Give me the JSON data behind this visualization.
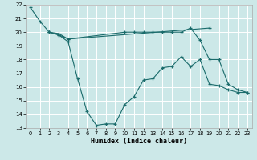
{
  "xlabel": "Humidex (Indice chaleur)",
  "xlim": [
    -0.5,
    23.5
  ],
  "ylim": [
    13,
    22
  ],
  "yticks": [
    13,
    14,
    15,
    16,
    17,
    18,
    19,
    20,
    21,
    22
  ],
  "xticks": [
    0,
    1,
    2,
    3,
    4,
    5,
    6,
    7,
    8,
    9,
    10,
    11,
    12,
    13,
    14,
    15,
    16,
    17,
    18,
    19,
    20,
    21,
    22,
    23
  ],
  "bg_color": "#cce8e8",
  "grid_color": "#ffffff",
  "line_color": "#1a6b6b",
  "line1_x": [
    0,
    1,
    2,
    3,
    4,
    19
  ],
  "line1_y": [
    21.8,
    20.8,
    20.0,
    19.9,
    19.5,
    20.3
  ],
  "line2_x": [
    2,
    3,
    4,
    5,
    6,
    7,
    8,
    9,
    10,
    11,
    12,
    13,
    14,
    15,
    16,
    17,
    18,
    19,
    20,
    21,
    22,
    23
  ],
  "line2_y": [
    20.0,
    19.8,
    19.3,
    16.6,
    14.2,
    13.2,
    13.3,
    13.3,
    14.7,
    15.3,
    16.5,
    16.6,
    17.4,
    17.5,
    18.2,
    17.5,
    18.0,
    16.2,
    16.1,
    15.8,
    15.6,
    15.6
  ],
  "line3_x": [
    2,
    3,
    4,
    10,
    11,
    12,
    13,
    14,
    15,
    16,
    17,
    18,
    19,
    20,
    21,
    22,
    23
  ],
  "line3_y": [
    20.0,
    19.8,
    19.5,
    20.0,
    20.0,
    20.0,
    20.0,
    20.0,
    20.0,
    20.0,
    20.3,
    19.4,
    18.0,
    18.0,
    16.2,
    15.8,
    15.6
  ],
  "line3_seg1_end": 3,
  "line3_seg2_start": 3
}
